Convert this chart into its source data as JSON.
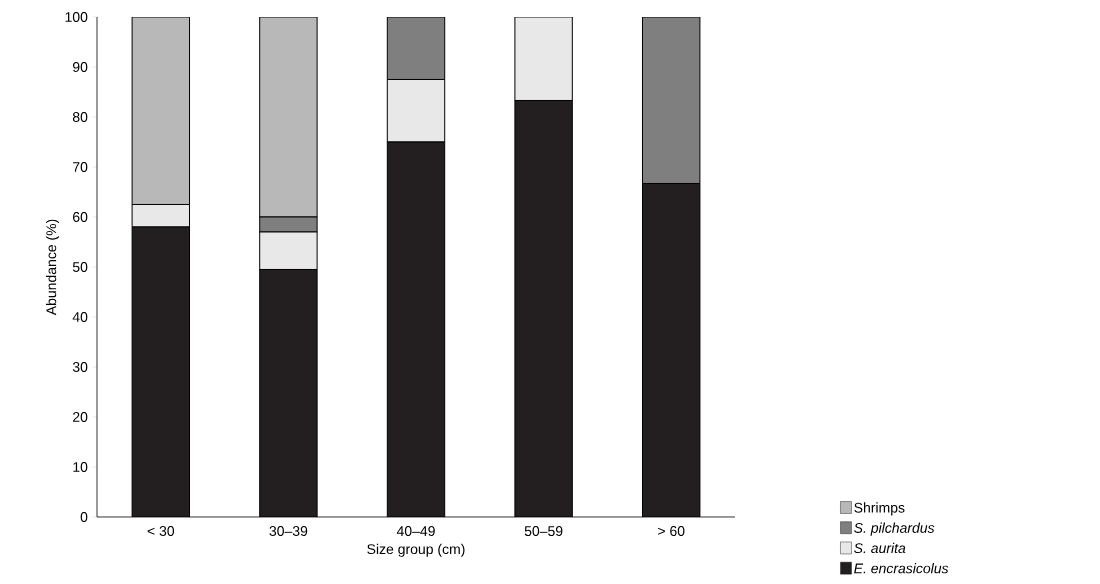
{
  "chart_data": {
    "type": "bar",
    "stacked": true,
    "xlabel": "Size group (cm)",
    "ylabel": "Abundance (%)",
    "categories": [
      "< 30",
      "30–39",
      "40–49",
      "50–59",
      "> 60"
    ],
    "series": [
      {
        "name": "E. encrasicolus",
        "color": "#231f20",
        "values": [
          58,
          49.5,
          75,
          83.3,
          66.7
        ]
      },
      {
        "name": "S. aurita",
        "color": "#e8e8e8",
        "values": [
          4.5,
          7.5,
          12.5,
          16.7,
          0
        ]
      },
      {
        "name": "S. pilchardus",
        "color": "#7f7f7f",
        "values": [
          0,
          3,
          12.5,
          0,
          33.3
        ]
      },
      {
        "name": "Shrimps",
        "color": "#b8b8b8",
        "values": [
          37.5,
          40,
          0,
          0,
          0
        ]
      }
    ],
    "ylim": [
      0,
      100
    ],
    "yticks": [
      0,
      10,
      20,
      30,
      40,
      50,
      60,
      70,
      80,
      90,
      100
    ],
    "grid": false,
    "legend": "bottom right"
  }
}
